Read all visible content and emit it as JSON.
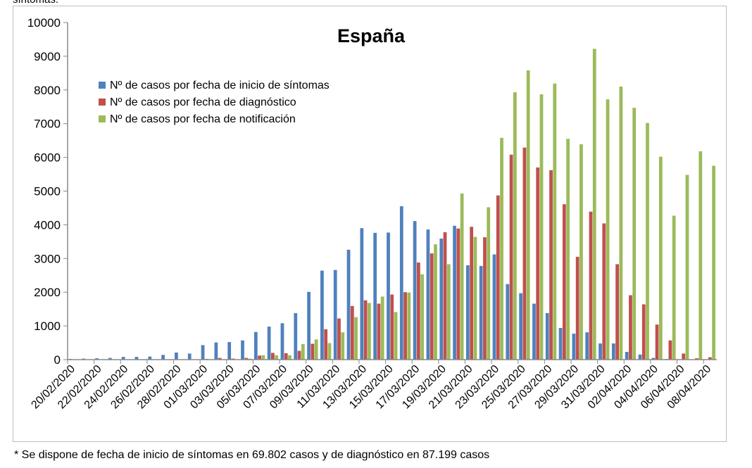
{
  "header_text": "síntomas.",
  "footnote": "* Se dispone de fecha de inicio de síntomas en 69.802 casos y de diagnóstico en 87.199 casos",
  "chart_data": {
    "type": "bar",
    "title": "España",
    "xlabel": "",
    "ylabel": "",
    "ylim": [
      0,
      10000
    ],
    "yticks": [
      "0",
      "1000",
      "2000",
      "3000",
      "4000",
      "5000",
      "6000",
      "7000",
      "8000",
      "9000",
      "10000"
    ],
    "legend_position": "top-left",
    "categories": [
      "20/02/2020",
      "21/02/2020",
      "22/02/2020",
      "23/02/2020",
      "24/02/2020",
      "25/02/2020",
      "26/02/2020",
      "27/02/2020",
      "28/02/2020",
      "29/02/2020",
      "01/03/2020",
      "02/03/2020",
      "03/03/2020",
      "04/03/2020",
      "05/03/2020",
      "06/03/2020",
      "07/03/2020",
      "08/03/2020",
      "09/03/2020",
      "10/03/2020",
      "11/03/2020",
      "12/03/2020",
      "13/03/2020",
      "14/03/2020",
      "15/03/2020",
      "16/03/2020",
      "17/03/2020",
      "18/03/2020",
      "19/03/2020",
      "20/03/2020",
      "21/03/2020",
      "22/03/2020",
      "23/03/2020",
      "24/03/2020",
      "25/03/2020",
      "26/03/2020",
      "27/03/2020",
      "28/03/2020",
      "29/03/2020",
      "30/03/2020",
      "31/03/2020",
      "01/04/2020",
      "02/04/2020",
      "03/04/2020",
      "04/04/2020",
      "05/04/2020",
      "06/04/2020",
      "07/04/2020",
      "08/04/2020"
    ],
    "series": [
      {
        "name": "Nº de casos por fecha de inicio de síntomas",
        "color": "#4F81BD",
        "values": [
          20,
          30,
          40,
          50,
          80,
          80,
          90,
          140,
          210,
          180,
          430,
          510,
          520,
          570,
          820,
          980,
          1080,
          1380,
          2010,
          2640,
          2660,
          3260,
          3900,
          3760,
          3770,
          4550,
          4110,
          3860,
          3590,
          3970,
          2800,
          2780,
          3120,
          2240,
          1970,
          1660,
          1380,
          940,
          770,
          810,
          480,
          480,
          230,
          150,
          50,
          20,
          10,
          5,
          0
        ]
      },
      {
        "name": "Nº de casos por fecha de diagnóstico",
        "color": "#C0504D",
        "values": [
          0,
          0,
          0,
          0,
          0,
          0,
          0,
          0,
          0,
          10,
          20,
          50,
          30,
          50,
          120,
          200,
          190,
          260,
          470,
          900,
          1220,
          1590,
          1760,
          1660,
          1930,
          2000,
          2880,
          3150,
          3780,
          3890,
          3940,
          3630,
          4870,
          6080,
          6290,
          5700,
          5620,
          4610,
          3050,
          4390,
          4040,
          2830,
          1910,
          1640,
          1040,
          570,
          180,
          40,
          70
        ]
      },
      {
        "name": "Nº de casos por fecha de notificación",
        "color": "#9BBB59",
        "values": [
          0,
          0,
          0,
          0,
          0,
          0,
          0,
          0,
          0,
          0,
          0,
          0,
          0,
          30,
          130,
          130,
          130,
          460,
          600,
          490,
          810,
          1260,
          1680,
          1870,
          1410,
          1990,
          2530,
          3420,
          2830,
          4930,
          3640,
          4520,
          6580,
          7930,
          8580,
          7870,
          8190,
          6550,
          6390,
          9220,
          7720,
          8100,
          7470,
          7020,
          6020,
          4270,
          5480,
          6180,
          5750
        ]
      }
    ]
  }
}
